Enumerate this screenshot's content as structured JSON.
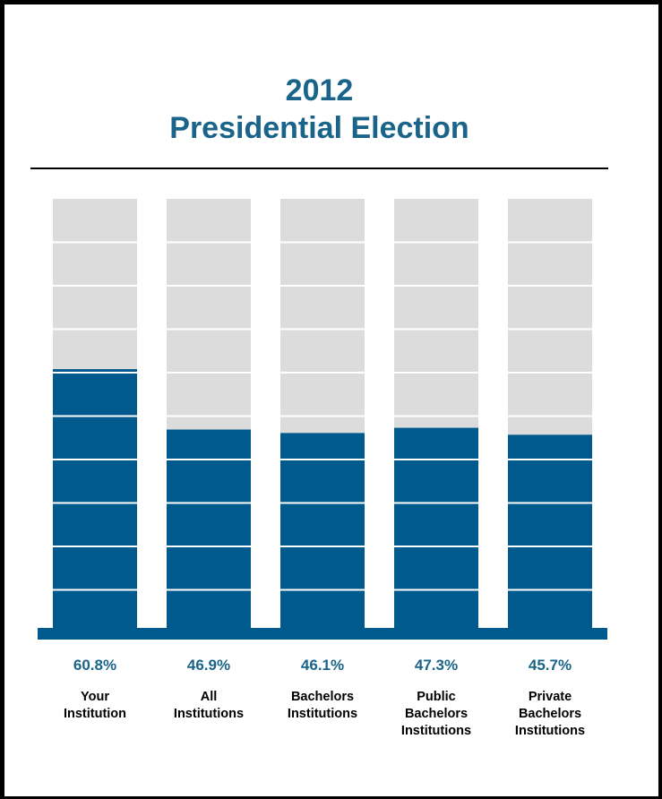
{
  "chart_data": {
    "type": "bar",
    "title_line1": "2012",
    "title_line2": "Presidential Election",
    "categories": [
      "Your\nInstitution",
      "All\nInstitutions",
      "Bachelors\nInstitutions",
      "Public\nBachelors\nInstitutions",
      "Private\nBachelors\nInstitutions"
    ],
    "values": [
      60.8,
      46.9,
      46.1,
      47.3,
      45.7
    ],
    "value_labels": [
      "60.8%",
      "46.9%",
      "46.1%",
      "47.3%",
      "45.7%"
    ],
    "ylim": [
      0,
      100
    ],
    "grid": true,
    "colors": {
      "fill": "#005a8e",
      "track": "#dcdcdc",
      "title": "#1a6389",
      "label": "#1a6389",
      "gridline": "#ffffff"
    }
  }
}
